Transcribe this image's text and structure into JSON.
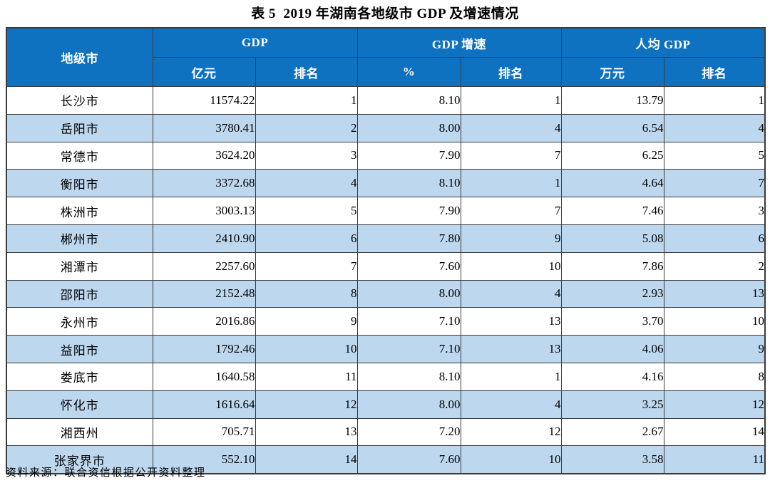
{
  "title": "表 5  2019 年湖南各地级市 GDP 及增速情况",
  "source_note": "资料来源：联合资信根据公开资料整理",
  "colors": {
    "header_bg": "#0f72c1",
    "stripe_bg": "#bdd7ee",
    "border": "#3a3a3a",
    "header_text": "#ffffff"
  },
  "table": {
    "group_headers": {
      "city": "地级市",
      "gdp": "GDP",
      "growth": "GDP 增速",
      "per_capita": "人均 GDP"
    },
    "sub_headers": {
      "gdp_unit": "亿元",
      "gdp_rank": "排名",
      "growth_unit": "%",
      "growth_rank": "排名",
      "per_capita_unit": "万元",
      "per_capita_rank": "排名"
    },
    "rows": [
      {
        "city": "长沙市",
        "gdp": "11574.22",
        "gdp_rank": "1",
        "growth": "8.10",
        "growth_rank": "1",
        "per_capita": "13.79",
        "per_capita_rank": "1"
      },
      {
        "city": "岳阳市",
        "gdp": "3780.41",
        "gdp_rank": "2",
        "growth": "8.00",
        "growth_rank": "4",
        "per_capita": "6.54",
        "per_capita_rank": "4"
      },
      {
        "city": "常德市",
        "gdp": "3624.20",
        "gdp_rank": "3",
        "growth": "7.90",
        "growth_rank": "7",
        "per_capita": "6.25",
        "per_capita_rank": "5"
      },
      {
        "city": "衡阳市",
        "gdp": "3372.68",
        "gdp_rank": "4",
        "growth": "8.10",
        "growth_rank": "1",
        "per_capita": "4.64",
        "per_capita_rank": "7"
      },
      {
        "city": "株洲市",
        "gdp": "3003.13",
        "gdp_rank": "5",
        "growth": "7.90",
        "growth_rank": "7",
        "per_capita": "7.46",
        "per_capita_rank": "3"
      },
      {
        "city": "郴州市",
        "gdp": "2410.90",
        "gdp_rank": "6",
        "growth": "7.80",
        "growth_rank": "9",
        "per_capita": "5.08",
        "per_capita_rank": "6"
      },
      {
        "city": "湘潭市",
        "gdp": "2257.60",
        "gdp_rank": "7",
        "growth": "7.60",
        "growth_rank": "10",
        "per_capita": "7.86",
        "per_capita_rank": "2"
      },
      {
        "city": "邵阳市",
        "gdp": "2152.48",
        "gdp_rank": "8",
        "growth": "8.00",
        "growth_rank": "4",
        "per_capita": "2.93",
        "per_capita_rank": "13"
      },
      {
        "city": "永州市",
        "gdp": "2016.86",
        "gdp_rank": "9",
        "growth": "7.10",
        "growth_rank": "13",
        "per_capita": "3.70",
        "per_capita_rank": "10"
      },
      {
        "city": "益阳市",
        "gdp": "1792.46",
        "gdp_rank": "10",
        "growth": "7.10",
        "growth_rank": "13",
        "per_capita": "4.06",
        "per_capita_rank": "9"
      },
      {
        "city": "娄底市",
        "gdp": "1640.58",
        "gdp_rank": "11",
        "growth": "8.10",
        "growth_rank": "1",
        "per_capita": "4.16",
        "per_capita_rank": "8"
      },
      {
        "city": "怀化市",
        "gdp": "1616.64",
        "gdp_rank": "12",
        "growth": "8.00",
        "growth_rank": "4",
        "per_capita": "3.25",
        "per_capita_rank": "12"
      },
      {
        "city": "湘西州",
        "gdp": "705.71",
        "gdp_rank": "13",
        "growth": "7.20",
        "growth_rank": "12",
        "per_capita": "2.67",
        "per_capita_rank": "14"
      },
      {
        "city": "张家界市",
        "gdp": "552.10",
        "gdp_rank": "14",
        "growth": "7.60",
        "growth_rank": "10",
        "per_capita": "3.58",
        "per_capita_rank": "11"
      }
    ]
  }
}
